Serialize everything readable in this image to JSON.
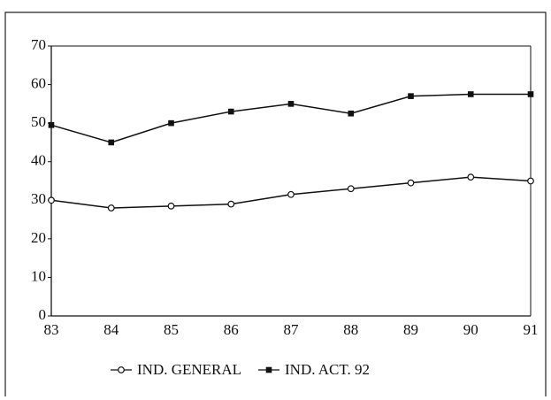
{
  "chart_data": {
    "type": "line",
    "categories": [
      "83",
      "84",
      "85",
      "86",
      "87",
      "88",
      "89",
      "90",
      "91"
    ],
    "series": [
      {
        "name": "IND. GENERAL",
        "color": "#111111",
        "marker": "open-circle",
        "values": [
          30,
          28,
          28.5,
          29,
          31.5,
          33,
          34.5,
          36,
          35
        ]
      },
      {
        "name": "IND. ACT. 92",
        "color": "#111111",
        "marker": "filled-square",
        "values": [
          49.5,
          45,
          50,
          53,
          55,
          52.5,
          57,
          57.5,
          57.5
        ]
      }
    ],
    "ylim": [
      0,
      70
    ],
    "yticks": [
      0,
      10,
      20,
      30,
      40,
      50,
      60,
      70
    ],
    "grid": false,
    "legend": "bottom"
  }
}
